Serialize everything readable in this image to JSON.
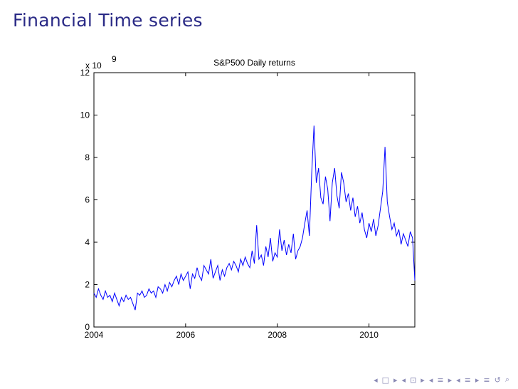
{
  "slide": {
    "title": "Financial Time series"
  },
  "chart_data": {
    "type": "line",
    "title": "S&P500 Daily returns",
    "xlabel": "",
    "ylabel": "",
    "y_multiplier_label": "x 10",
    "y_multiplier_exponent": "9",
    "xlim": [
      2004,
      2011
    ],
    "ylim": [
      0,
      12
    ],
    "x_ticks": [
      2004,
      2006,
      2008,
      2010
    ],
    "y_ticks": [
      0,
      2,
      4,
      6,
      8,
      10,
      12
    ],
    "grid": false,
    "line_color": "#0000ff",
    "series": [
      {
        "x": [
          2004.0,
          2004.05,
          2004.1,
          2004.15,
          2004.2,
          2004.25,
          2004.3,
          2004.35,
          2004.4,
          2004.45,
          2004.5,
          2004.55,
          2004.6,
          2004.65,
          2004.7,
          2004.75,
          2004.8,
          2004.85,
          2004.9,
          2004.95,
          2005.0,
          2005.05,
          2005.1,
          2005.15,
          2005.2,
          2005.25,
          2005.3,
          2005.35,
          2005.4,
          2005.45,
          2005.5,
          2005.55,
          2005.6,
          2005.65,
          2005.7,
          2005.75,
          2005.8,
          2005.85,
          2005.9,
          2005.95,
          2006.0,
          2006.05,
          2006.1,
          2006.15,
          2006.2,
          2006.25,
          2006.3,
          2006.35,
          2006.4,
          2006.45,
          2006.5,
          2006.55,
          2006.6,
          2006.65,
          2006.7,
          2006.75,
          2006.8,
          2006.85,
          2006.9,
          2006.95,
          2007.0,
          2007.05,
          2007.1,
          2007.15,
          2007.2,
          2007.25,
          2007.3,
          2007.35,
          2007.4,
          2007.45,
          2007.5,
          2007.55,
          2007.6,
          2007.65,
          2007.7,
          2007.75,
          2007.8,
          2007.85,
          2007.9,
          2007.95,
          2008.0,
          2008.05,
          2008.1,
          2008.15,
          2008.2,
          2008.25,
          2008.3,
          2008.35,
          2008.4,
          2008.45,
          2008.5,
          2008.55,
          2008.6,
          2008.65,
          2008.7,
          2008.75,
          2008.8,
          2008.85,
          2008.9,
          2008.95,
          2009.0,
          2009.05,
          2009.1,
          2009.15,
          2009.2,
          2009.25,
          2009.3,
          2009.35,
          2009.4,
          2009.45,
          2009.5,
          2009.55,
          2009.6,
          2009.65,
          2009.7,
          2009.75,
          2009.8,
          2009.85,
          2009.9,
          2009.95,
          2010.0,
          2010.05,
          2010.1,
          2010.15,
          2010.2,
          2010.25,
          2010.3,
          2010.35,
          2010.4,
          2010.45,
          2010.5,
          2010.55,
          2010.6,
          2010.65,
          2010.7,
          2010.75,
          2010.8,
          2010.85,
          2010.9,
          2010.95,
          2011.0
        ],
        "y": [
          1.6,
          1.4,
          1.8,
          1.5,
          1.3,
          1.7,
          1.4,
          1.5,
          1.2,
          1.6,
          1.3,
          1.0,
          1.4,
          1.2,
          1.5,
          1.3,
          1.4,
          1.1,
          0.8,
          1.6,
          1.5,
          1.7,
          1.4,
          1.5,
          1.8,
          1.6,
          1.7,
          1.4,
          1.9,
          1.8,
          1.6,
          2.0,
          1.7,
          2.1,
          1.9,
          2.2,
          2.4,
          2.0,
          2.5,
          2.2,
          2.4,
          2.6,
          1.8,
          2.5,
          2.3,
          2.8,
          2.4,
          2.2,
          2.9,
          2.7,
          2.5,
          3.2,
          2.3,
          2.6,
          2.9,
          2.2,
          2.7,
          2.4,
          2.8,
          3.0,
          2.7,
          3.1,
          2.9,
          2.6,
          3.2,
          2.9,
          3.3,
          3.0,
          2.8,
          3.6,
          3.0,
          4.8,
          3.2,
          3.4,
          2.9,
          3.8,
          3.3,
          4.2,
          3.1,
          3.5,
          3.3,
          4.6,
          3.6,
          4.1,
          3.4,
          3.9,
          3.5,
          4.4,
          3.2,
          3.6,
          3.8,
          4.2,
          4.9,
          5.5,
          4.3,
          7.2,
          9.5,
          6.8,
          7.5,
          6.1,
          5.8,
          7.1,
          6.5,
          5.0,
          6.8,
          7.5,
          6.2,
          5.6,
          7.3,
          6.8,
          5.9,
          6.3,
          5.5,
          6.1,
          5.2,
          5.7,
          4.9,
          5.4,
          4.6,
          4.2,
          4.9,
          4.5,
          5.1,
          4.3,
          4.8,
          5.6,
          6.4,
          8.5,
          5.9,
          5.2,
          4.6,
          4.9,
          4.3,
          4.6,
          3.9,
          4.4,
          4.1,
          3.8,
          4.5,
          4.2,
          2.2
        ]
      }
    ]
  },
  "navigation": {
    "symbols": [
      "◂",
      "□",
      "▸",
      "◂",
      "⊡",
      "▸",
      "◂",
      "≡",
      "▸",
      "◂",
      "≡",
      "▸",
      "≡",
      "↺",
      "⌕"
    ]
  }
}
